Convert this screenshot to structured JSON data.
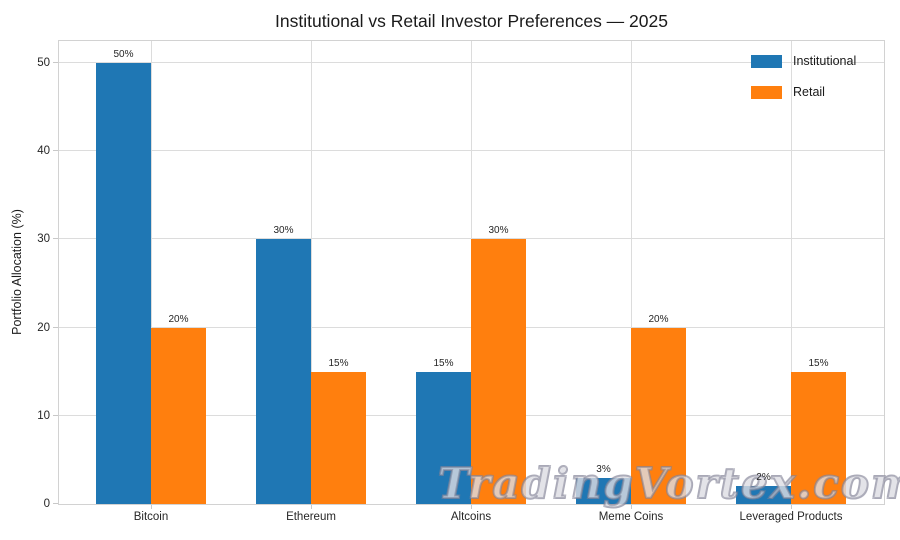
{
  "title": "Institutional vs Retail Investor Preferences — 2025",
  "watermark": "TradingVortex.com",
  "chart_data": {
    "type": "bar",
    "title": "Institutional vs Retail Investor Preferences — 2025",
    "categories": [
      "Bitcoin",
      "Ethereum",
      "Altcoins",
      "Meme Coins",
      "Leveraged Products"
    ],
    "series": [
      {
        "name": "Institutional",
        "color": "#1f77b4",
        "values": [
          50,
          30,
          15,
          3,
          2
        ],
        "labels": [
          "50%",
          "30%",
          "15%",
          "3%",
          "2%"
        ]
      },
      {
        "name": "Retail",
        "color": "#ff7f0e",
        "values": [
          20,
          15,
          30,
          20,
          15
        ],
        "labels": [
          "20%",
          "15%",
          "30%",
          "20%",
          "15%"
        ]
      }
    ],
    "xlabel": "",
    "ylabel": "Portfolio Allocation (%)",
    "ylim": [
      0,
      52.5
    ],
    "yticks": [
      0,
      10,
      20,
      30,
      40,
      50
    ],
    "grid": true,
    "legend_position": "upper right"
  },
  "colors": {
    "grid": "#dcdcdc",
    "spine": "#d2d2d2",
    "tick": "#c8c8c8",
    "text": "#262626"
  }
}
